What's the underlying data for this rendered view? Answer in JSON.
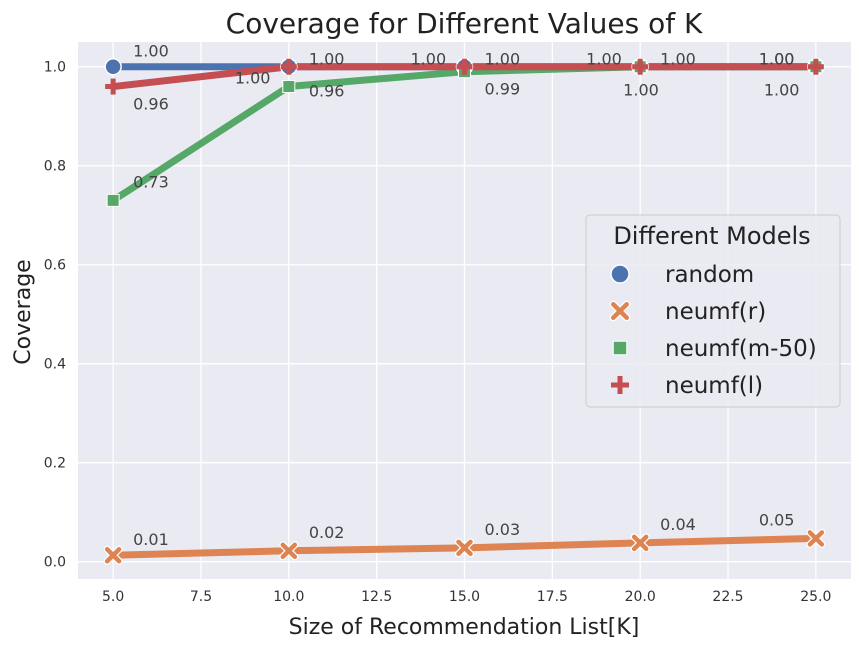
{
  "chart_data": {
    "type": "line",
    "title": "Coverage for Different Values of K",
    "xlabel": "Size of Recommendation List[K]",
    "ylabel": "Coverage",
    "x": [
      5,
      10,
      15,
      20,
      25
    ],
    "xlim": [
      4.0,
      26.0
    ],
    "ylim": [
      -0.035,
      1.05
    ],
    "xticks": [
      "5.0",
      "7.5",
      "10.0",
      "12.5",
      "15.0",
      "17.5",
      "20.0",
      "22.5",
      "25.0"
    ],
    "yticks": [
      "0.0",
      "0.2",
      "0.4",
      "0.6",
      "0.8",
      "1.0"
    ],
    "grid": true,
    "legend": {
      "title": "Different Models",
      "placement": "center-right"
    },
    "series": [
      {
        "name": "random",
        "marker": "circle",
        "color": "#4c72b0",
        "values": [
          1.0,
          1.0,
          1.0,
          1.0,
          1.0
        ],
        "labels": [
          "1.00",
          "1.00",
          "1.00",
          "1.00",
          "1.00"
        ]
      },
      {
        "name": "neumf(r)",
        "marker": "x",
        "color": "#dd8452",
        "values": [
          0.013,
          0.022,
          0.028,
          0.038,
          0.047
        ],
        "labels": [
          "0.01",
          "0.02",
          "0.03",
          "0.04",
          "0.05"
        ]
      },
      {
        "name": "neumf(m-50)",
        "marker": "square",
        "color": "#55a868",
        "values": [
          0.73,
          0.96,
          0.99,
          1.0,
          1.0
        ],
        "labels": [
          "0.73",
          "0.96",
          "0.99",
          "1.00",
          "1.00"
        ]
      },
      {
        "name": "neumf(l)",
        "marker": "plus",
        "color": "#c44e52",
        "values": [
          0.96,
          1.0,
          1.0,
          1.0,
          1.0
        ],
        "labels": [
          "0.96",
          "1.00",
          "1.00",
          "1.00",
          "1.00"
        ]
      }
    ]
  }
}
